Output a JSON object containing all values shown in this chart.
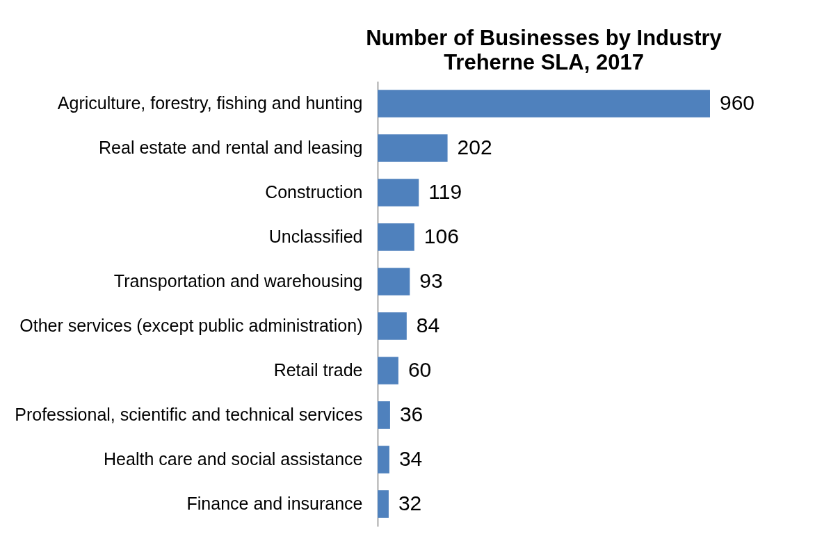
{
  "chart_data": {
    "type": "bar",
    "orientation": "horizontal",
    "title": "Number of Businesses by Industry",
    "subtitle": "Treherne SLA, 2017",
    "categories": [
      "Agriculture, forestry, fishing and hunting",
      "Real estate and rental and leasing",
      "Construction",
      "Unclassified",
      "Transportation and warehousing",
      "Other services (except public administration)",
      "Retail trade",
      "Professional, scientific and technical services",
      "Health care and social assistance",
      "Finance and insurance"
    ],
    "values": [
      960,
      202,
      119,
      106,
      93,
      84,
      60,
      36,
      34,
      32
    ],
    "color": "#4f81bd",
    "data_labels": true,
    "tick_labels": "y"
  }
}
